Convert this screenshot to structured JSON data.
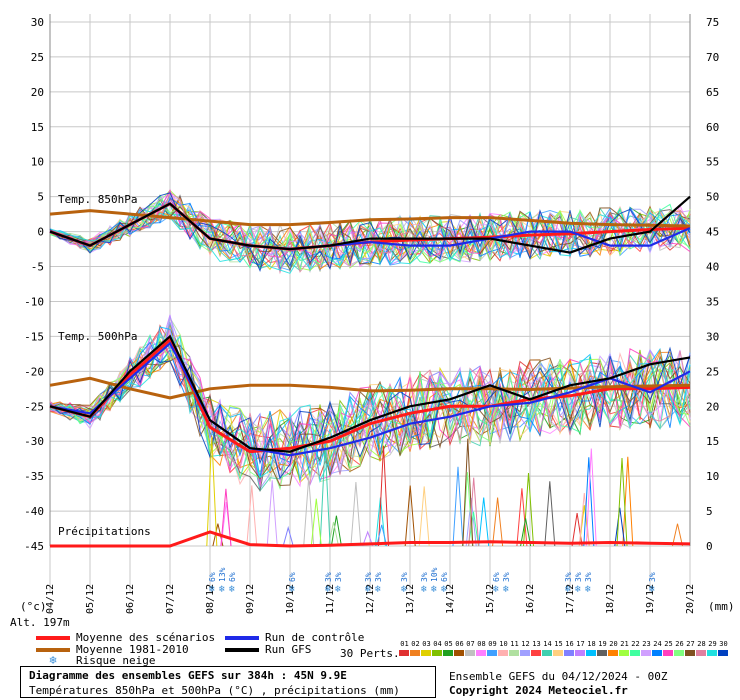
{
  "chart_data": {
    "type": "line",
    "title": "Diagramme des ensembles GEFS sur 384h : 45N 9.9E",
    "subtitle": "Températures 850hPa et 500hPa (°C) , précipitations (mm)",
    "y_left_label": "(°c)",
    "y_right_label": "(mm)",
    "y_left_ticks": [
      30,
      25,
      20,
      15,
      10,
      5,
      0,
      -5,
      -10,
      -15,
      -20,
      -25,
      -30,
      -35,
      -40,
      -45
    ],
    "y_right_ticks": [
      75,
      70,
      65,
      60,
      55,
      50,
      45,
      40,
      35,
      30,
      25,
      20,
      15,
      10,
      5,
      0
    ],
    "ylim_left": [
      -45,
      30
    ],
    "ylim_right": [
      0,
      75
    ],
    "x_dates": [
      "04/12",
      "05/12",
      "06/12",
      "07/12",
      "08/12",
      "09/12",
      "10/12",
      "11/12",
      "12/12",
      "13/12",
      "14/12",
      "15/12",
      "16/12",
      "17/12",
      "18/12",
      "19/12",
      "20/12"
    ],
    "panel_labels": [
      "Temp. 850hPa",
      "Temp. 500hPa",
      "Précipitations"
    ],
    "grid": true,
    "series": [
      {
        "name": "Moyenne des scénarios",
        "panel": "850hPa",
        "color": "#ff1a1a",
        "values": [
          0,
          -2,
          1,
          4,
          -1,
          -2,
          -2.5,
          -2,
          -1.5,
          -1.2,
          -1,
          -0.8,
          -0.5,
          -0.3,
          0,
          0.3,
          0.5
        ]
      },
      {
        "name": "Moyenne 1981-2010",
        "panel": "850hPa",
        "color": "#b8620e",
        "values": [
          2.5,
          3,
          2.5,
          2,
          1.5,
          1,
          1,
          1.3,
          1.7,
          1.8,
          2,
          2,
          1.6,
          1.2,
          1,
          0.9,
          0.8
        ]
      },
      {
        "name": "Moyenne des scénarios",
        "panel": "500hPa",
        "color": "#ff1a1a",
        "values": [
          -25,
          -26.5,
          -20.5,
          -15.5,
          -28,
          -31.5,
          -31,
          -30,
          -27.5,
          -26,
          -25,
          -25,
          -24,
          -23.5,
          -22.5,
          -22.5,
          -22.3
        ]
      },
      {
        "name": "Moyenne 1981-2010",
        "panel": "500hPa",
        "color": "#b8620e",
        "values": [
          -22,
          -21,
          -22.5,
          -23.8,
          -22.5,
          -22,
          -22,
          -22.3,
          -22.8,
          -22.7,
          -22.5,
          -22.5,
          -22.6,
          -22.4,
          -22.2,
          -22.1,
          -22
        ]
      },
      {
        "name": "Run de contrôle",
        "panel": "500hPa",
        "color": "#1f2ae8",
        "values": [
          -25,
          -26,
          -21,
          -16,
          -27,
          -31,
          -32,
          -31,
          -29.5,
          -27.5,
          -26.5,
          -25,
          -24.5,
          -23,
          -21,
          -23,
          -20
        ]
      },
      {
        "name": "Run GFS",
        "panel": "500hPa",
        "color": "#000000",
        "values": [
          -25,
          -26.5,
          -20,
          -15,
          -27,
          -31,
          -31.5,
          -29.5,
          -27,
          -25,
          -24,
          -22,
          -24,
          -22,
          -21,
          -19,
          -18
        ]
      },
      {
        "name": "Run de contrôle",
        "panel": "850hPa",
        "color": "#1f2ae8",
        "values": [
          0,
          -2,
          1,
          4,
          -1,
          -2,
          -2.5,
          -2,
          -1.5,
          -2,
          -2,
          -1,
          0,
          0,
          -2,
          -2,
          0.5
        ]
      },
      {
        "name": "Run GFS",
        "panel": "850hPa",
        "color": "#000000",
        "values": [
          0,
          -2,
          1,
          4,
          -1,
          -2,
          -2.5,
          -2,
          -1,
          -1,
          -1,
          -1,
          -2,
          -3,
          -1,
          0,
          5
        ]
      },
      {
        "name": "Moyenne des scénarios",
        "panel": "precip",
        "color": "#ff1a1a",
        "values": [
          0,
          0,
          0,
          0,
          2,
          0.2,
          0,
          0.1,
          0.3,
          0.5,
          0.5,
          0.6,
          0.5,
          0.4,
          0.5,
          0.4,
          0.3
        ]
      }
    ],
    "snow_risk": [
      {
        "date": "08/12",
        "labels": [
          "6%",
          "13%",
          "6%"
        ]
      },
      {
        "date": "10/12",
        "labels": [
          "6%"
        ]
      },
      {
        "date": "11/12",
        "labels": [
          "3%",
          "3%"
        ]
      },
      {
        "date": "12/12",
        "labels": [
          "3%",
          "3%"
        ]
      },
      {
        "date": "13/12",
        "labels": [
          "3%"
        ]
      },
      {
        "date": "13/12",
        "labels": [
          "3%",
          "10%",
          "6%"
        ]
      },
      {
        "date": "15/12",
        "labels": [
          "6%",
          "3%"
        ]
      },
      {
        "date": "17/12",
        "labels": [
          "3%",
          "3%",
          "3%"
        ]
      },
      {
        "date": "19/12",
        "labels": [
          "3%"
        ]
      }
    ]
  },
  "legend": {
    "items": [
      {
        "label": "Moyenne des scénarios",
        "color": "#ff1a1a"
      },
      {
        "label": "Moyenne 1981-2010",
        "color": "#b8620e"
      },
      {
        "label": "Risque neige",
        "color": "#3c8fd8"
      },
      {
        "label": "Run de contrôle",
        "color": "#1f2ae8"
      },
      {
        "label": "Run GFS",
        "color": "#000000"
      }
    ],
    "perts_label": "30 Perts.",
    "pert_numbers": [
      "01",
      "02",
      "03",
      "04",
      "05",
      "06",
      "07",
      "08",
      "09",
      "10",
      "11",
      "12",
      "13",
      "14",
      "15",
      "16",
      "17",
      "18",
      "19",
      "20",
      "21",
      "22",
      "23",
      "24",
      "25",
      "26",
      "27",
      "28",
      "29",
      "30"
    ],
    "pert_colors": [
      "#e03030",
      "#f08020",
      "#e0d000",
      "#80c000",
      "#20a020",
      "#a05000",
      "#c0c0c0",
      "#ff80ff",
      "#40a0ff",
      "#ffb0b0",
      "#b0e0a0",
      "#a0a0ff",
      "#ff4040",
      "#40d0b0",
      "#ffd080",
      "#8080ff",
      "#c080ff",
      "#00c0ff",
      "#606060",
      "#ff8000",
      "#a0ff40",
      "#40ffa0",
      "#d0a0ff",
      "#0080ff",
      "#ff40c0",
      "#80ff80",
      "#805020",
      "#e080a0",
      "#20e0e0",
      "#0040c0"
    ]
  },
  "footer": {
    "title": "Diagramme des ensembles GEFS sur 384h : 45N 9.9E",
    "subtitle": "Températures 850hPa et 500hPa (°C) , précipitations (mm)",
    "run_info": "Ensemble GEFS du 04/12/2024 - 00Z",
    "copyright": "Copyright 2024 Meteociel.fr",
    "altitude": "Alt. 197m"
  }
}
